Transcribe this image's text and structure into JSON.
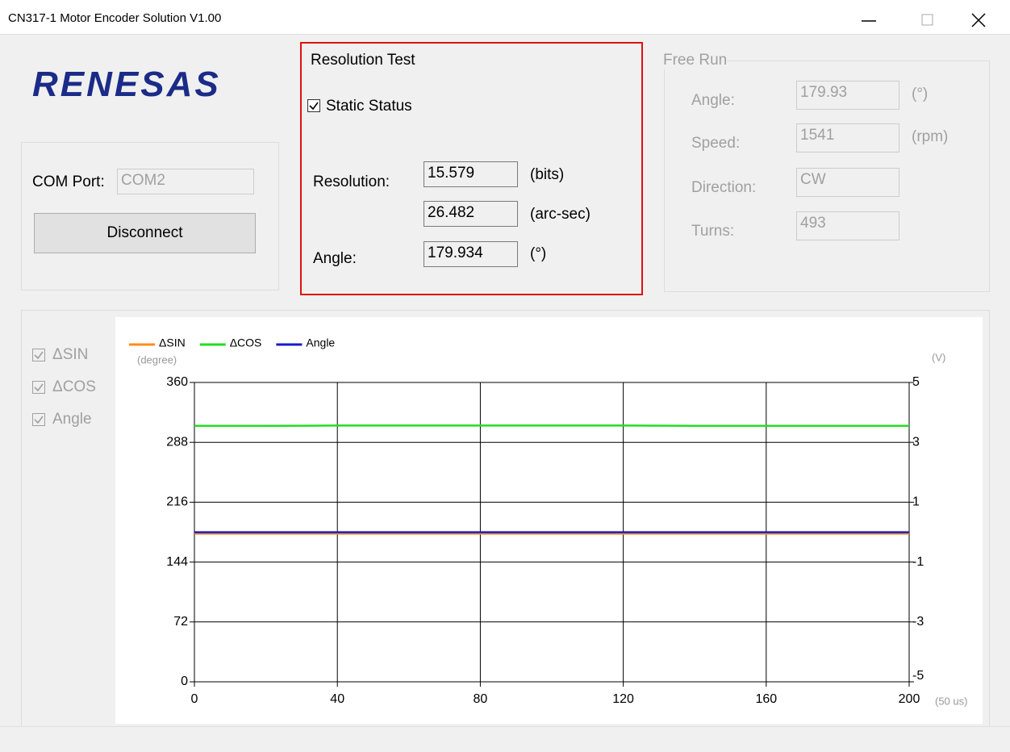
{
  "window": {
    "title": "CN317-1 Motor Encoder Solution V1.00"
  },
  "logo": "RENESAS",
  "connection": {
    "com_port_label": "COM Port:",
    "com_port_value": "COM2",
    "button": "Disconnect"
  },
  "resolution_test": {
    "title": "Resolution Test",
    "checkbox": {
      "label": "Static Status",
      "checked": true
    },
    "resolution_label": "Resolution:",
    "bits": "15.579",
    "bits_unit": "(bits)",
    "arcsec": "26.482",
    "arcsec_unit": "(arc-sec)",
    "angle_label": "Angle:",
    "angle": "179.934",
    "angle_unit": "(°)"
  },
  "free_run": {
    "title": "Free Run",
    "rows": [
      {
        "label": "Angle:",
        "value": "179.93",
        "unit": "(°)"
      },
      {
        "label": "Speed:",
        "value": "1541",
        "unit": "(rpm)"
      },
      {
        "label": "Direction:",
        "value": "CW"
      },
      {
        "label": "Turns:",
        "value": "493"
      }
    ]
  },
  "plot_toggles": [
    {
      "label": "ΔSIN",
      "checked": true
    },
    {
      "label": "ΔCOS",
      "checked": true
    },
    {
      "label": "Angle",
      "checked": true
    }
  ],
  "chart_data": {
    "type": "line",
    "ylabel": "(degree)",
    "y2label": "(V)",
    "xlabel": "(50 us)",
    "xlim": [
      0,
      200
    ],
    "xticks": [
      0,
      40,
      80,
      120,
      160,
      200
    ],
    "ylim": [
      0,
      360
    ],
    "yticks": [
      0,
      72,
      144,
      216,
      288,
      360
    ],
    "y2lim": [
      -5,
      5
    ],
    "y2ticks": [
      -5,
      -3,
      -1,
      1,
      3,
      5
    ],
    "grid": true,
    "x": [
      0,
      20,
      40,
      60,
      80,
      100,
      120,
      140,
      160,
      180,
      200
    ],
    "series": [
      {
        "name": "ΔSIN",
        "color": "#ff8c1a",
        "axis": "y2",
        "values": [
          -0.05,
          -0.05,
          -0.05,
          -0.05,
          -0.05,
          -0.05,
          -0.05,
          -0.05,
          -0.05,
          -0.05,
          -0.05
        ]
      },
      {
        "name": "ΔCOS",
        "color": "#22dd22",
        "axis": "y2",
        "values": [
          3.55,
          3.55,
          3.56,
          3.56,
          3.56,
          3.56,
          3.56,
          3.55,
          3.55,
          3.55,
          3.55
        ]
      },
      {
        "name": "Angle",
        "color": "#1a1acc",
        "values": [
          179.93,
          179.93,
          179.93,
          179.93,
          179.93,
          179.93,
          179.93,
          179.93,
          179.93,
          179.93,
          179.93
        ]
      }
    ]
  }
}
